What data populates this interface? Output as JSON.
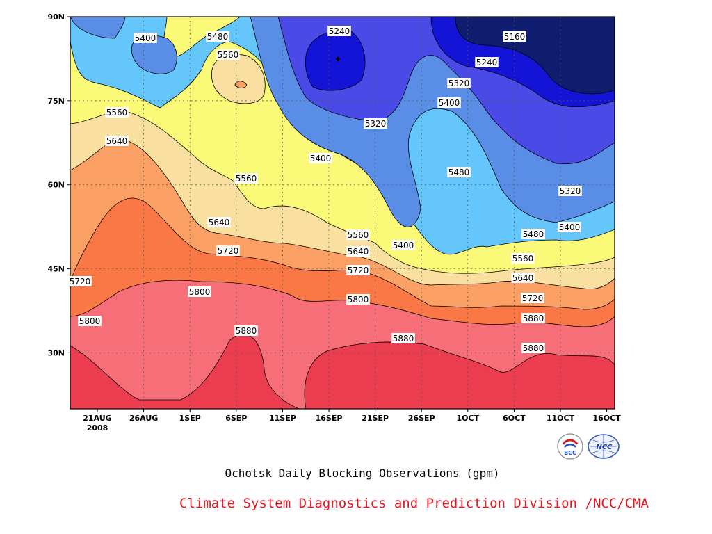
{
  "chart_data": {
    "type": "heatmap",
    "title": "Ochotsk Daily Blocking Observations (gpm)",
    "x_ticks": [
      "21AUG",
      "26AUG",
      "1SEP",
      "6SEP",
      "11SEP",
      "16SEP",
      "21SEP",
      "26SEP",
      "1OCT",
      "6OCT",
      "11OCT",
      "16OCT"
    ],
    "x_year_label": "2008",
    "y_ticks": [
      "30N",
      "45N",
      "60N",
      "75N",
      "90N"
    ],
    "ylim": [
      20,
      90
    ],
    "contour_levels": [
      5160,
      5240,
      5320,
      5400,
      5480,
      5560,
      5640,
      5720,
      5800,
      5880
    ],
    "level_colors": {
      "below_5160": "#0e1d6e",
      "5160_5240": "#1414d6",
      "5240_5320": "#4a4ae6",
      "5320_5400": "#5a8ee6",
      "5400_5480": "#64c6fa",
      "5480_5560": "#fafa78",
      "5560_5640": "#fae0a0",
      "5640_5720": "#faa064",
      "5720_5800": "#fa7846",
      "5800_5880": "#f56e78",
      "above_5880": "#eb3c50"
    },
    "contour_labels": [
      "5400",
      "5480",
      "5240",
      "5160",
      "5560",
      "5240",
      "5320",
      "5400",
      "5560",
      "5320",
      "5640",
      "5400",
      "5480",
      "5560",
      "5320",
      "5640",
      "5560",
      "5400",
      "5480",
      "5400",
      "5720",
      "5640",
      "5560",
      "5720",
      "5640",
      "5720",
      "5800",
      "5720",
      "5800",
      "5800",
      "5880",
      "5880",
      "5880",
      "5880"
    ]
  },
  "footer": {
    "title": "Ochotsk Daily Blocking Observations (gpm)",
    "credit": "Climate System Diagnostics and Prediction Division /NCC/CMA"
  },
  "logos": {
    "bcc": "BCC",
    "ncc": "NCC"
  }
}
